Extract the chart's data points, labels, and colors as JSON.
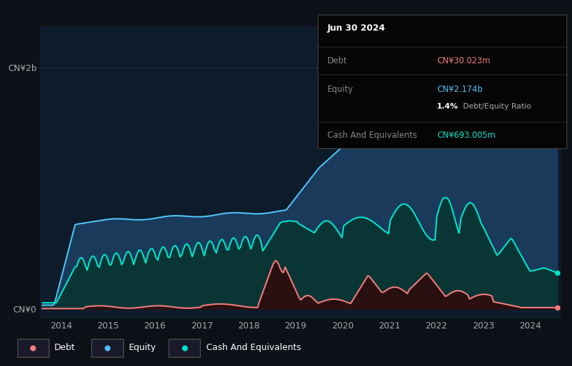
{
  "bg_color": "#0d1117",
  "plot_bg_color": "#0d1b2a",
  "equity_color": "#4fc3f7",
  "debt_color": "#f47c7c",
  "cash_color": "#00e5cc",
  "equity_fill": "#1a3a5c",
  "cash_fill_color": "#0a3535",
  "debt_fill_color": "#2a1010",
  "ylabel_top": "CN¥2b",
  "ylabel_bottom": "CN¥0",
  "xlabel_years": [
    "2014",
    "2015",
    "2016",
    "2017",
    "2018",
    "2019",
    "2020",
    "2021",
    "2022",
    "2023",
    "2024"
  ],
  "tooltip_date": "Jun 30 2024",
  "tooltip_debt_label": "Debt",
  "tooltip_debt_value": "CN¥30.023m",
  "tooltip_equity_label": "Equity",
  "tooltip_equity_value": "CN¥2.174b",
  "tooltip_ratio_pct": "1.4%",
  "tooltip_ratio_text": " Debt/Equity Ratio",
  "tooltip_cash_label": "Cash And Equivalents",
  "tooltip_cash_value": "CN¥693.005m",
  "legend_debt": "Debt",
  "legend_equity": "Equity",
  "legend_cash": "Cash And Equivalents",
  "xmin": 2013.55,
  "xmax": 2024.65,
  "ymin": -0.08,
  "ymax": 2.35
}
